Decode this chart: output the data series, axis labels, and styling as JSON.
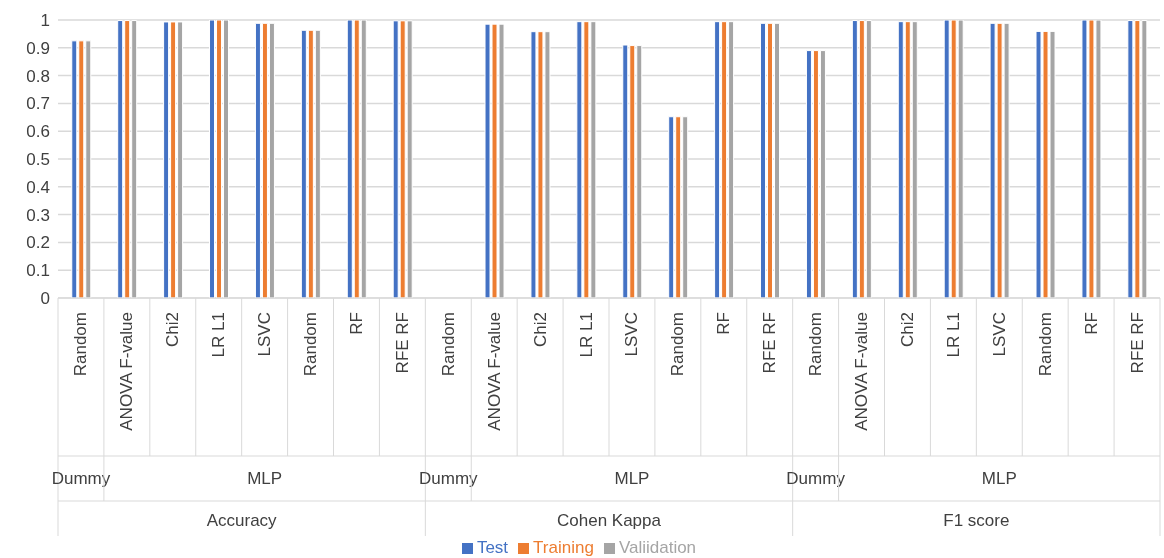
{
  "chart_data": {
    "type": "bar",
    "categories": [
      "Random",
      "ANOVA F-value",
      "Chi2",
      "LR L1",
      "LSVC",
      "Random",
      "RF",
      "RFE RF",
      "Random",
      "ANOVA F-value",
      "Chi2",
      "LR L1",
      "LSVC",
      "Random",
      "RF",
      "RFE RF",
      "Random",
      "ANOVA F-value",
      "Chi2",
      "LR L1",
      "LSVC",
      "Random",
      "RF",
      "RFE RF"
    ],
    "series": [
      {
        "name": "Test",
        "color": "#4472c4",
        "values": [
          0.925,
          0.998,
          0.993,
          1.0,
          0.988,
          0.963,
          1.0,
          0.997,
          0,
          0.985,
          0.958,
          0.994,
          0.91,
          0.652,
          0.994,
          0.988,
          0.89,
          0.998,
          0.994,
          1.0,
          0.988,
          0.959,
          1.0,
          0.998
        ]
      },
      {
        "name": "Training",
        "color": "#ed7d31",
        "values": [
          0.925,
          0.998,
          0.993,
          1.0,
          0.988,
          0.963,
          1.0,
          0.997,
          0,
          0.985,
          0.958,
          0.994,
          0.908,
          0.652,
          0.994,
          0.988,
          0.89,
          0.998,
          0.994,
          1.0,
          0.988,
          0.959,
          1.0,
          0.998
        ]
      },
      {
        "name": "Valiidation",
        "color": "#a5a5a5",
        "values": [
          0.925,
          0.998,
          0.993,
          1.0,
          0.988,
          0.963,
          1.0,
          0.997,
          0,
          0.985,
          0.958,
          0.994,
          0.908,
          0.652,
          0.994,
          0.988,
          0.89,
          0.998,
          0.994,
          1.0,
          0.988,
          0.959,
          1.0,
          0.998
        ]
      }
    ],
    "annotations": [
      "Dummy",
      "MLP",
      "Dummy",
      "MLP",
      "Dummy",
      "MLP",
      "Accuracy",
      "Cohen Kappa",
      "F1 score"
    ],
    "ylim": [
      0,
      1
    ],
    "yticks": [
      0,
      0.1,
      0.2,
      0.3,
      0.4,
      0.5,
      0.6,
      0.7,
      0.8,
      0.9,
      1
    ],
    "grid": "y",
    "legend": "bottom"
  }
}
